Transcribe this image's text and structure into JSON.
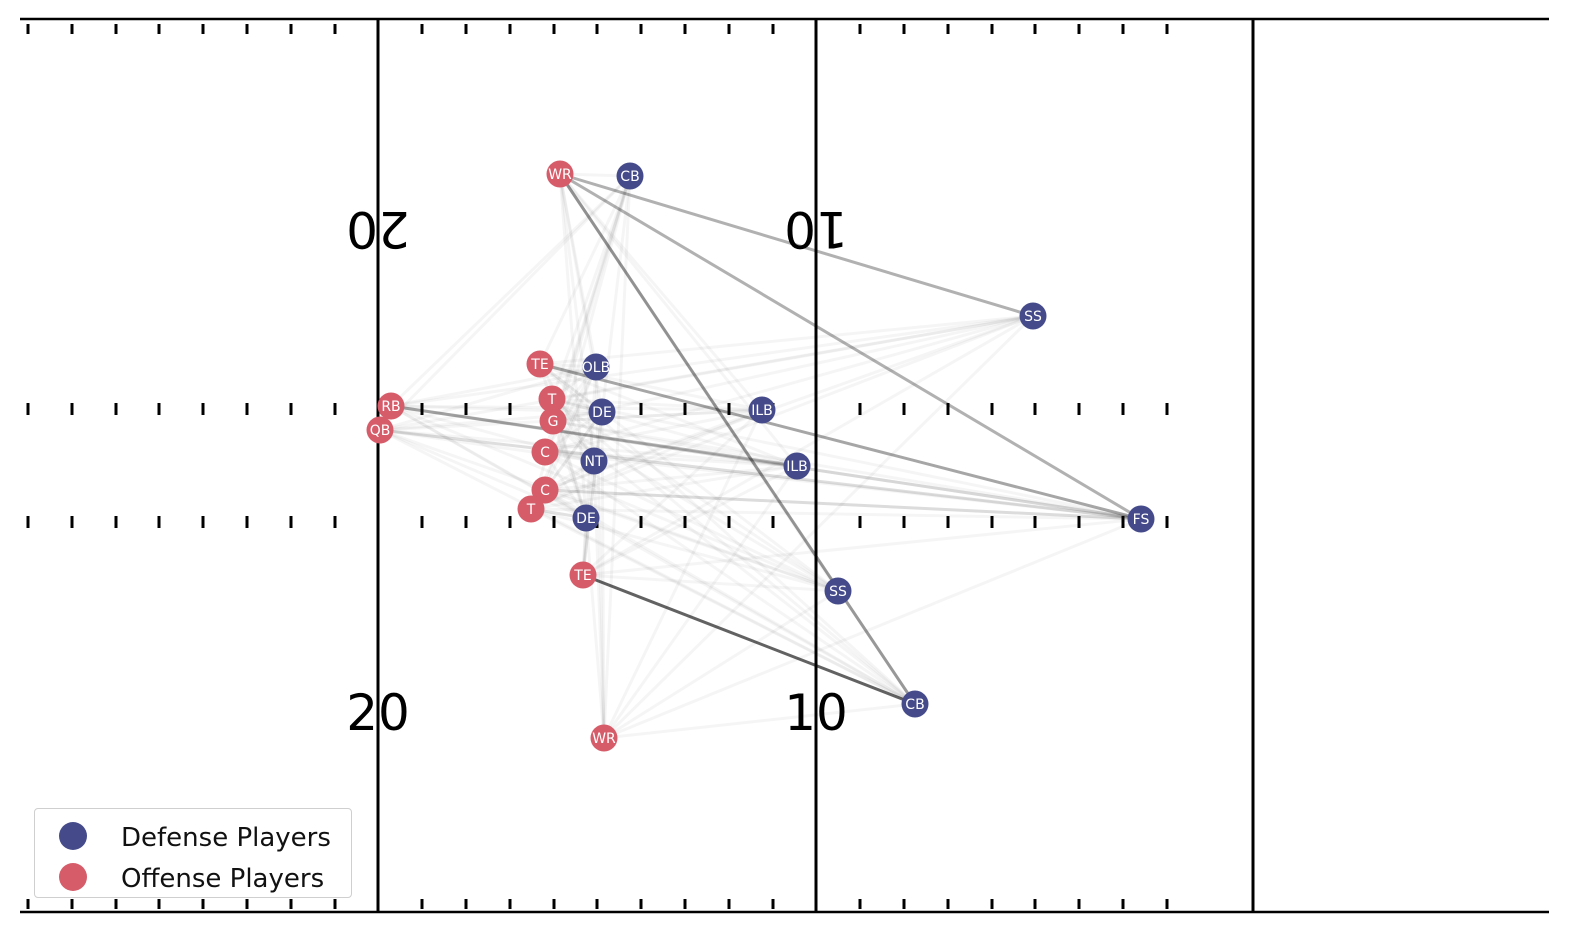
{
  "field": {
    "yard_numbers": [
      {
        "text": "20",
        "upside_down": true
      },
      {
        "text": "10",
        "upside_down": true
      },
      {
        "text": "20",
        "upside_down": false
      },
      {
        "text": "10",
        "upside_down": false
      }
    ]
  },
  "legend": {
    "items": [
      {
        "label": "Defense Players",
        "color": "#454b8a"
      },
      {
        "label": "Offense Players",
        "color": "#d65c6a"
      }
    ]
  },
  "colors": {
    "defense": "#454b8a",
    "offense": "#d65c6a",
    "lines": "#000000"
  },
  "players": {
    "offense": [
      {
        "label": "WR"
      },
      {
        "label": "TE"
      },
      {
        "label": "RB"
      },
      {
        "label": "QB"
      },
      {
        "label": "T"
      },
      {
        "label": "G"
      },
      {
        "label": "C"
      },
      {
        "label": "C"
      },
      {
        "label": "T"
      },
      {
        "label": "TE"
      },
      {
        "label": "WR"
      }
    ],
    "defense": [
      {
        "label": "CB"
      },
      {
        "label": "SS"
      },
      {
        "label": "OLB"
      },
      {
        "label": "DE"
      },
      {
        "label": "ILB"
      },
      {
        "label": "NT"
      },
      {
        "label": "ILB"
      },
      {
        "label": "DE"
      },
      {
        "label": "FS"
      },
      {
        "label": "SS"
      },
      {
        "label": "CB"
      }
    ]
  },
  "highlighted_connections": [
    {
      "from": "WR (top)",
      "to": "SS (top)"
    },
    {
      "from": "WR (top)",
      "to": "FS"
    },
    {
      "from": "WR (top)",
      "to": "CB (bottom)"
    },
    {
      "from": "TE (top)",
      "to": "FS"
    },
    {
      "from": "RB",
      "to": "ILB (lower)"
    },
    {
      "from": "TE (bottom)",
      "to": "CB (bottom)"
    }
  ]
}
